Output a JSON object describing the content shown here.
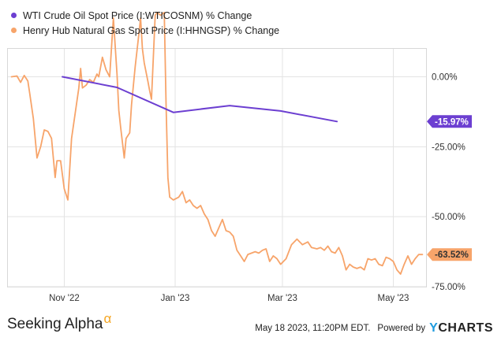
{
  "chart_data": {
    "type": "line",
    "legend_position": "top-left",
    "grid": true,
    "y_unit": "%",
    "ylim": [
      -75,
      10
    ],
    "y_ticks": [
      {
        "value": 0,
        "label": "0.00%"
      },
      {
        "value": -25,
        "label": "-25.00%"
      },
      {
        "value": -50,
        "label": "-50.00%"
      },
      {
        "value": -75,
        "label": "-75.00%"
      }
    ],
    "x_range": [
      "2022-10-01",
      "2023-05-19"
    ],
    "x_ticks": [
      {
        "date": "2022-11-01",
        "label": "Nov '22"
      },
      {
        "date": "2023-01-01",
        "label": "Jan '23"
      },
      {
        "date": "2023-03-01",
        "label": "Mar '23"
      },
      {
        "date": "2023-05-01",
        "label": "May '23"
      }
    ],
    "series": [
      {
        "name": "WTI Crude Oil Spot Price (I:WTICOSNM) % Change",
        "color": "#6c3fd1",
        "end_label": "-15.97%",
        "points": [
          [
            "2022-10-31",
            0.0
          ],
          [
            "2022-11-30",
            -3.8
          ],
          [
            "2022-12-31",
            -12.7
          ],
          [
            "2023-01-31",
            -10.3
          ],
          [
            "2023-02-28",
            -12.2
          ],
          [
            "2023-03-31",
            -15.97
          ]
        ]
      },
      {
        "name": "Henry Hub Natural Gas Spot Price (I:HHNGSP) % Change",
        "color": "#f7a46a",
        "end_label": "-63.52%",
        "points": [
          [
            "2022-10-03",
            0.0
          ],
          [
            "2022-10-06",
            0.3
          ],
          [
            "2022-10-08",
            -2.0
          ],
          [
            "2022-10-10",
            0.5
          ],
          [
            "2022-10-12",
            -1.5
          ],
          [
            "2022-10-13",
            -6.0
          ],
          [
            "2022-10-15",
            -15.0
          ],
          [
            "2022-10-17",
            -29.0
          ],
          [
            "2022-10-19",
            -25.0
          ],
          [
            "2022-10-21",
            -19.0
          ],
          [
            "2022-10-23",
            -19.5
          ],
          [
            "2022-10-25",
            -22.0
          ],
          [
            "2022-10-27",
            -36.0
          ],
          [
            "2022-10-28",
            -30.0
          ],
          [
            "2022-10-30",
            -30.0
          ],
          [
            "2022-11-01",
            -40.0
          ],
          [
            "2022-11-03",
            -44.0
          ],
          [
            "2022-11-05",
            -22.0
          ],
          [
            "2022-11-07",
            -13.0
          ],
          [
            "2022-11-09",
            -4.0
          ],
          [
            "2022-11-10",
            3.0
          ],
          [
            "2022-11-11",
            -4.0
          ],
          [
            "2022-11-13",
            -3.0
          ],
          [
            "2022-11-15",
            -1.0
          ],
          [
            "2022-11-17",
            -2.0
          ],
          [
            "2022-11-19",
            1.0
          ],
          [
            "2022-11-20",
            0.0
          ],
          [
            "2022-11-22",
            7.0
          ],
          [
            "2022-11-24",
            2.5
          ],
          [
            "2022-11-26",
            0.0
          ],
          [
            "2022-11-28",
            21.0
          ],
          [
            "2022-11-30",
            1.0
          ],
          [
            "2022-12-01",
            -12.0
          ],
          [
            "2022-12-02",
            -18.0
          ],
          [
            "2022-12-04",
            -29.0
          ],
          [
            "2022-12-05",
            -22.0
          ],
          [
            "2022-12-07",
            -20.0
          ],
          [
            "2022-12-08",
            -10.0
          ],
          [
            "2022-12-10",
            3.5
          ],
          [
            "2022-12-12",
            15.0
          ],
          [
            "2022-12-13",
            21.0
          ],
          [
            "2022-12-14",
            10.0
          ],
          [
            "2022-12-15",
            5.0
          ],
          [
            "2022-12-17",
            -1.5
          ],
          [
            "2022-12-18",
            -5.0
          ],
          [
            "2022-12-19",
            -8.0
          ],
          [
            "2022-12-21",
            22.0
          ],
          [
            "2022-12-22",
            23.0
          ],
          [
            "2022-12-24",
            22.0
          ],
          [
            "2022-12-26",
            23.0
          ],
          [
            "2022-12-27",
            -10.0
          ],
          [
            "2022-12-28",
            -36.0
          ],
          [
            "2022-12-29",
            -43.0
          ],
          [
            "2022-12-31",
            -44.0
          ],
          [
            "2023-01-03",
            -43.0
          ],
          [
            "2023-01-05",
            -41.0
          ],
          [
            "2023-01-07",
            -45.0
          ],
          [
            "2023-01-09",
            -44.0
          ],
          [
            "2023-01-11",
            -46.0
          ],
          [
            "2023-01-13",
            -47.0
          ],
          [
            "2023-01-15",
            -46.0
          ],
          [
            "2023-01-17",
            -49.0
          ],
          [
            "2023-01-19",
            -51.0
          ],
          [
            "2023-01-21",
            -55.0
          ],
          [
            "2023-01-23",
            -57.0
          ],
          [
            "2023-01-25",
            -54.0
          ],
          [
            "2023-01-27",
            -51.0
          ],
          [
            "2023-01-29",
            -55.0
          ],
          [
            "2023-01-31",
            -55.5
          ],
          [
            "2023-02-02",
            -57.0
          ],
          [
            "2023-02-04",
            -62.0
          ],
          [
            "2023-02-06",
            -64.0
          ],
          [
            "2023-02-08",
            -66.0
          ],
          [
            "2023-02-10",
            -63.5
          ],
          [
            "2023-02-12",
            -63.0
          ],
          [
            "2023-02-14",
            -62.5
          ],
          [
            "2023-02-16",
            -63.0
          ],
          [
            "2023-02-18",
            -62.0
          ],
          [
            "2023-02-20",
            -61.5
          ],
          [
            "2023-02-22",
            -66.0
          ],
          [
            "2023-02-24",
            -64.0
          ],
          [
            "2023-02-26",
            -65.0
          ],
          [
            "2023-02-28",
            -67.0
          ],
          [
            "2023-03-03",
            -65.0
          ],
          [
            "2023-03-06",
            -60.0
          ],
          [
            "2023-03-09",
            -58.0
          ],
          [
            "2023-03-12",
            -60.0
          ],
          [
            "2023-03-15",
            -59.0
          ],
          [
            "2023-03-17",
            -61.0
          ],
          [
            "2023-03-20",
            -61.5
          ],
          [
            "2023-03-22",
            -61.0
          ],
          [
            "2023-03-24",
            -62.0
          ],
          [
            "2023-03-26",
            -60.5
          ],
          [
            "2023-03-28",
            -62.5
          ],
          [
            "2023-03-30",
            -63.0
          ],
          [
            "2023-04-01",
            -61.0
          ],
          [
            "2023-04-03",
            -64.0
          ],
          [
            "2023-04-05",
            -69.0
          ],
          [
            "2023-04-07",
            -67.0
          ],
          [
            "2023-04-09",
            -68.0
          ],
          [
            "2023-04-11",
            -68.5
          ],
          [
            "2023-04-13",
            -68.0
          ],
          [
            "2023-04-15",
            -69.0
          ],
          [
            "2023-04-17",
            -65.0
          ],
          [
            "2023-04-19",
            -65.5
          ],
          [
            "2023-04-21",
            -65.0
          ],
          [
            "2023-04-23",
            -67.0
          ],
          [
            "2023-04-25",
            -67.5
          ],
          [
            "2023-04-27",
            -64.5
          ],
          [
            "2023-04-29",
            -65.0
          ],
          [
            "2023-05-01",
            -66.0
          ],
          [
            "2023-05-03",
            -69.0
          ],
          [
            "2023-05-05",
            -70.5
          ],
          [
            "2023-05-07",
            -67.0
          ],
          [
            "2023-05-09",
            -64.0
          ],
          [
            "2023-05-11",
            -67.0
          ],
          [
            "2023-05-13",
            -65.0
          ],
          [
            "2023-05-15",
            -63.5
          ],
          [
            "2023-05-17",
            -63.52
          ]
        ]
      }
    ]
  },
  "footer": {
    "brand_name": "Seeking Alpha",
    "brand_symbol": "α",
    "timestamp": "May 18 2023, 11:20PM EDT.",
    "powered_by": "Powered by",
    "ycharts_y": "Y",
    "ycharts_rest": "CHARTS"
  }
}
